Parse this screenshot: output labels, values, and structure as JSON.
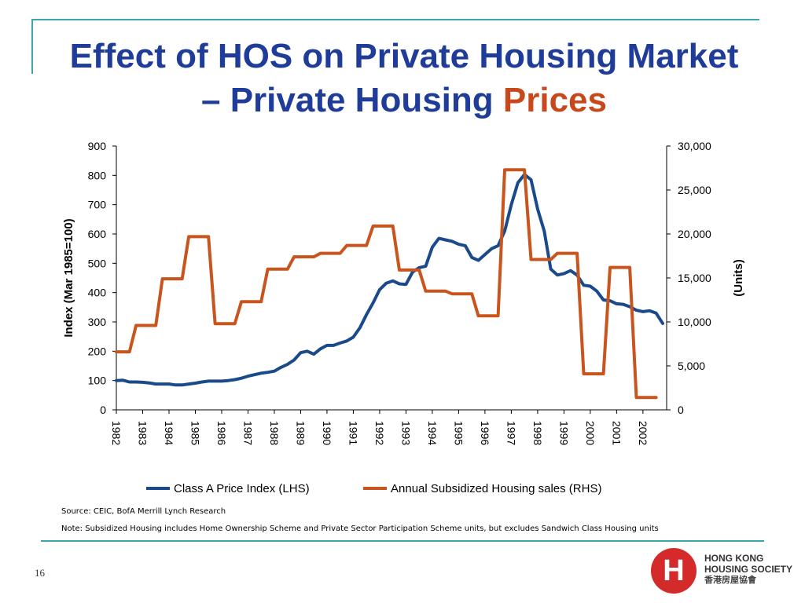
{
  "slide": {
    "title_line1": "Effect of HOS on Private Housing Market",
    "title_line2_prefix": "– Private Housing ",
    "title_line2_accent": "Prices",
    "source": "Source: CEIC, BofA Merrill Lynch Research",
    "note": "Note: Subsidized Housing includes Home Ownership Scheme and Private Sector Participation Scheme units, but excludes Sandwich Class Housing units",
    "page_number": "16",
    "logo": {
      "mark": "H",
      "line1": "HONG KONG",
      "line2": "HOUSING SOCIETY",
      "line3": "香港房屋協會"
    }
  },
  "colors": {
    "title": "#1f3c99",
    "accent": "#c8481c",
    "rule": "#3aa8a8",
    "series_lhs": "#1a4a8a",
    "series_rhs": "#c8541e"
  },
  "chart_data": {
    "type": "line",
    "ylabel": "Index (Mar 1985=100)",
    "y2label": "(Units)",
    "ylim": [
      0,
      900
    ],
    "yticks": [
      "0",
      "100",
      "200",
      "300",
      "400",
      "500",
      "600",
      "700",
      "800",
      "900"
    ],
    "y2lim": [
      0,
      30000
    ],
    "y2ticks": [
      "0",
      "5,000",
      "10,000",
      "15,000",
      "20,000",
      "25,000",
      "30,000"
    ],
    "xlim": [
      1982,
      2002.9
    ],
    "xticks": [
      "1982",
      "1983",
      "1984",
      "1985",
      "1986",
      "1987",
      "1988",
      "1989",
      "1990",
      "1991",
      "1992",
      "1993",
      "1994",
      "1995",
      "1996",
      "1997",
      "1998",
      "1999",
      "2000",
      "2001",
      "2002"
    ],
    "legend": "bottom",
    "series": [
      {
        "name": "Class A Price Index (LHS)",
        "axis": "left",
        "x": [
          1982.0,
          1982.25,
          1982.5,
          1982.75,
          1983.0,
          1983.25,
          1983.5,
          1983.75,
          1984.0,
          1984.25,
          1984.5,
          1984.75,
          1985.0,
          1985.25,
          1985.5,
          1985.75,
          1986.0,
          1986.25,
          1986.5,
          1986.75,
          1987.0,
          1987.25,
          1987.5,
          1987.75,
          1988.0,
          1988.25,
          1988.5,
          1988.75,
          1989.0,
          1989.25,
          1989.5,
          1989.75,
          1990.0,
          1990.25,
          1990.5,
          1990.75,
          1991.0,
          1991.25,
          1991.5,
          1991.75,
          1992.0,
          1992.25,
          1992.5,
          1992.75,
          1993.0,
          1993.25,
          1993.5,
          1993.75,
          1994.0,
          1994.25,
          1994.5,
          1994.75,
          1995.0,
          1995.25,
          1995.5,
          1995.75,
          1996.0,
          1996.25,
          1996.5,
          1996.75,
          1997.0,
          1997.25,
          1997.5,
          1997.75,
          1998.0,
          1998.25,
          1998.5,
          1998.75,
          1999.0,
          1999.25,
          1999.5,
          1999.75,
          2000.0,
          2000.25,
          2000.5,
          2000.75,
          2001.0,
          2001.25,
          2001.5,
          2001.75,
          2002.0,
          2002.25,
          2002.5,
          2002.75
        ],
        "values": [
          100,
          101,
          95,
          95,
          94,
          92,
          88,
          88,
          88,
          85,
          85,
          88,
          91,
          95,
          98,
          98,
          98,
          100,
          103,
          108,
          115,
          120,
          125,
          128,
          132,
          145,
          155,
          170,
          195,
          200,
          190,
          208,
          220,
          220,
          228,
          235,
          248,
          280,
          325,
          365,
          410,
          432,
          440,
          430,
          428,
          470,
          485,
          490,
          555,
          585,
          580,
          575,
          565,
          560,
          520,
          510,
          530,
          550,
          560,
          610,
          700,
          775,
          803,
          785,
          685,
          610,
          480,
          460,
          465,
          475,
          460,
          425,
          422,
          405,
          375,
          372,
          362,
          360,
          352,
          340,
          335,
          338,
          330,
          295
        ]
      },
      {
        "name": "Annual Subsidized Housing sales (RHS)",
        "axis": "right",
        "x": [
          1982.0,
          1982.5,
          1982.75,
          1983.5,
          1983.75,
          1984.5,
          1984.75,
          1985.5,
          1985.75,
          1986.5,
          1986.75,
          1987.5,
          1987.75,
          1988.5,
          1988.75,
          1989.5,
          1989.75,
          1990.5,
          1990.75,
          1991.5,
          1991.75,
          1992.5,
          1992.75,
          1993.5,
          1993.75,
          1994.5,
          1994.75,
          1995.5,
          1995.75,
          1996.5,
          1996.75,
          1997.5,
          1997.75,
          1998.5,
          1998.75,
          1999.5,
          1999.75,
          2000.5,
          2000.75,
          2001.5,
          2001.75,
          2002.5
        ],
        "values": [
          6600,
          6600,
          9600,
          9600,
          14900,
          14900,
          19700,
          19700,
          9800,
          9800,
          12300,
          12300,
          16000,
          16000,
          17400,
          17400,
          17800,
          17800,
          18700,
          18700,
          20900,
          20900,
          15900,
          15900,
          13500,
          13500,
          13200,
          13200,
          10700,
          10700,
          27300,
          27300,
          17100,
          17100,
          17800,
          17800,
          4100,
          4100,
          16200,
          16200,
          1400,
          1400
        ]
      }
    ]
  }
}
